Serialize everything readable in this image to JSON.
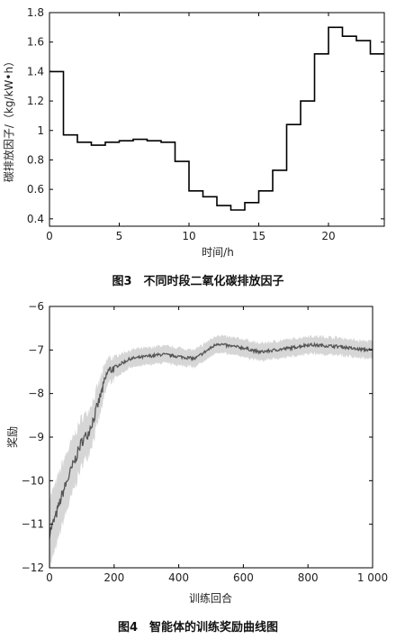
{
  "chart_data": [
    {
      "type": "line",
      "line_shape": "step",
      "caption": "图3　不同时段二氧化碳排放因子",
      "xlabel": "时间/h",
      "ylabel": "碳排放因子/（kg/kW•h）",
      "xlim": [
        0,
        24
      ],
      "ylim": [
        0.35,
        1.8
      ],
      "xticks": [
        0,
        5,
        10,
        15,
        20
      ],
      "xtick_labels": [
        "0",
        "5",
        "10",
        "15",
        "20"
      ],
      "yticks": [
        0.4,
        0.6,
        0.8,
        1.0,
        1.2,
        1.4,
        1.6,
        1.8
      ],
      "ytick_labels": [
        "0.4",
        "0.6",
        "0.8",
        "1",
        "1.2",
        "1.4",
        "1.6",
        "1.8"
      ],
      "grid": false,
      "hours": [
        0,
        1,
        2,
        3,
        4,
        5,
        6,
        7,
        8,
        9,
        10,
        11,
        12,
        13,
        14,
        15,
        16,
        17,
        18,
        19,
        20,
        21,
        22,
        23
      ],
      "values": [
        1.4,
        0.97,
        0.92,
        0.9,
        0.92,
        0.93,
        0.94,
        0.93,
        0.92,
        0.79,
        0.59,
        0.55,
        0.49,
        0.46,
        0.51,
        0.59,
        0.73,
        1.04,
        1.2,
        1.52,
        1.7,
        1.64,
        1.61,
        1.52
      ],
      "color": "#000000"
    },
    {
      "type": "line",
      "caption": "图4　智能体的训练奖励曲线图",
      "xlabel": "训练回合",
      "ylabel": "奖励",
      "xlim": [
        0,
        1000
      ],
      "ylim": [
        -12,
        -6
      ],
      "xticks": [
        0,
        200,
        400,
        600,
        800,
        1000
      ],
      "xtick_labels": [
        "0",
        "200",
        "400",
        "600",
        "800",
        "1 000"
      ],
      "yticks": [
        -12,
        -11,
        -10,
        -9,
        -8,
        -7,
        -6
      ],
      "ytick_labels": [
        "−12",
        "−11",
        "−10",
        "−9",
        "−8",
        "−7",
        "−6"
      ],
      "grid": false,
      "x": [
        0,
        20,
        40,
        60,
        80,
        100,
        120,
        140,
        160,
        180,
        200,
        250,
        300,
        350,
        400,
        450,
        480,
        500,
        520,
        550,
        600,
        650,
        700,
        750,
        800,
        850,
        900,
        950,
        1000
      ],
      "mean": [
        -11.2,
        -10.8,
        -10.3,
        -9.9,
        -9.5,
        -9.1,
        -8.9,
        -8.5,
        -8.0,
        -7.5,
        -7.4,
        -7.2,
        -7.15,
        -7.1,
        -7.15,
        -7.2,
        -7.05,
        -6.95,
        -6.85,
        -6.9,
        -6.95,
        -7.05,
        -7.0,
        -6.95,
        -6.88,
        -6.9,
        -6.92,
        -6.98,
        -7.0
      ],
      "band_halfwidth": [
        0.8,
        0.75,
        0.7,
        0.65,
        0.6,
        0.55,
        0.5,
        0.45,
        0.4,
        0.3,
        0.25,
        0.2,
        0.2,
        0.2,
        0.2,
        0.2,
        0.2,
        0.2,
        0.2,
        0.2,
        0.2,
        0.2,
        0.2,
        0.2,
        0.2,
        0.2,
        0.2,
        0.2,
        0.2
      ],
      "line_color": "#555555",
      "band_color": "#d6d6d6"
    }
  ]
}
